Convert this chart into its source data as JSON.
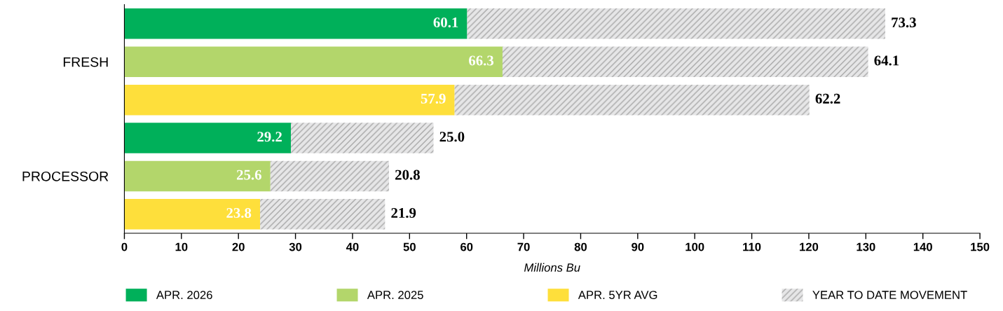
{
  "chart_data": {
    "type": "bar",
    "orientation": "horizontal",
    "stacked": true,
    "categories": [
      null,
      "FRESH",
      null,
      null,
      "PROCESSOR",
      null
    ],
    "series": [
      {
        "name": "APR. 2026",
        "color": "#00b05a",
        "values": [
          60.1,
          null,
          null,
          29.2,
          null,
          null
        ]
      },
      {
        "name": "APR. 2025",
        "color": "#b3d66b",
        "values": [
          null,
          66.3,
          null,
          null,
          25.6,
          null
        ]
      },
      {
        "name": "APR. 5YR AVG",
        "color": "#fedf3b",
        "values": [
          null,
          null,
          57.9,
          null,
          null,
          23.8
        ]
      },
      {
        "name": "YEAR TO DATE MOVEMENT",
        "color": "#e6e6e7",
        "values": [
          73.3,
          64.1,
          62.2,
          25.0,
          20.8,
          21.9
        ],
        "value_labels": [
          "73.3",
          "64.1",
          "62.2",
          "25.0",
          "20.8",
          "21.9"
        ]
      }
    ],
    "xlim": [
      0,
      150
    ],
    "xticks": [
      0,
      10,
      20,
      30,
      40,
      50,
      60,
      70,
      80,
      90,
      100,
      110,
      120,
      130,
      140,
      150
    ],
    "xlabel": "Millions Bu",
    "data_labels": true,
    "grid": false,
    "legend": "bottom"
  }
}
